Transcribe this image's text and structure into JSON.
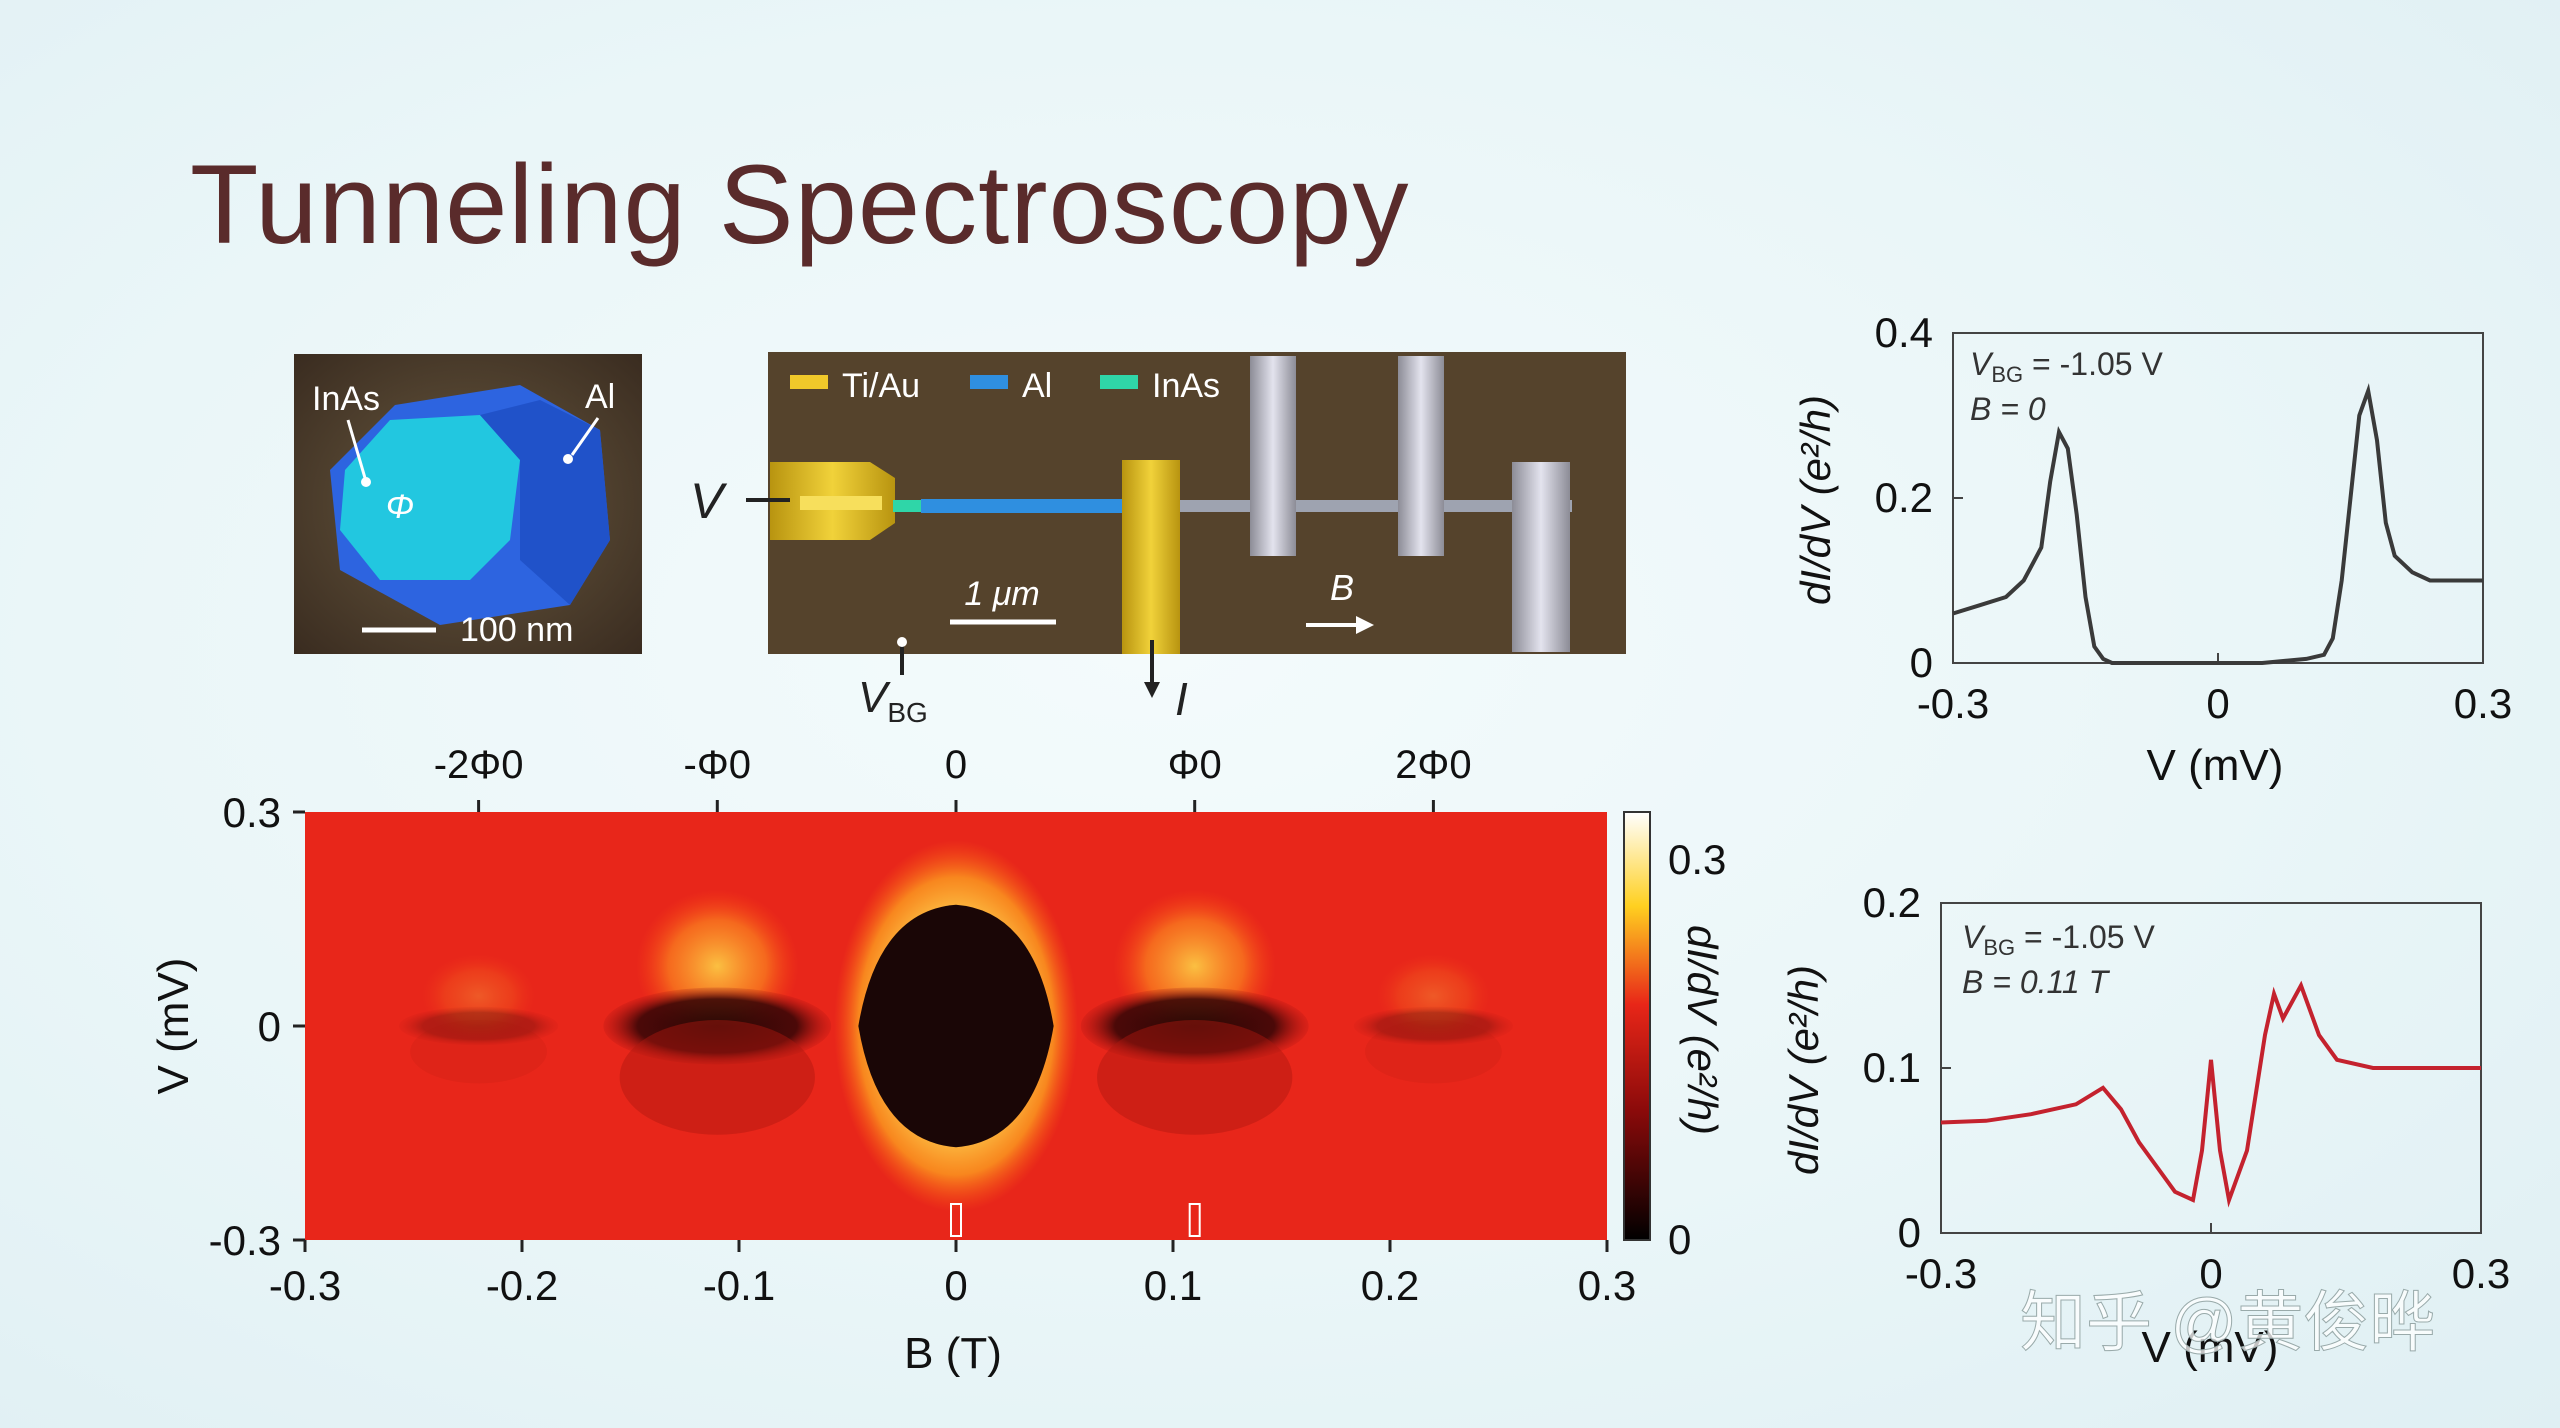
{
  "slide": {
    "title": "Tunneling Spectroscopy"
  },
  "cross_section": {
    "label_inas": "InAs",
    "label_al": "Al",
    "label_phi": "Φ",
    "scale_bar": "100 nm"
  },
  "device": {
    "legend": [
      {
        "label": "Ti/Au",
        "color": "#e6c52a"
      },
      {
        "label": "Al",
        "color": "#2f8fe0"
      },
      {
        "label": "InAs",
        "color": "#2fd6a8"
      }
    ],
    "label_v": "V",
    "label_vbg": "V",
    "label_vbg_sub": "BG",
    "label_i": "I",
    "scale_bar": "1 μm",
    "label_b": "B"
  },
  "colors": {
    "map_base": "#e8261a",
    "map_dark": "#1a0606",
    "map_bright": "#fff27a",
    "curve_top": "#3a3a3a",
    "curve_bottom": "#c4222e",
    "title": "#5a2b2b"
  },
  "chart_data": [
    {
      "type": "heatmap",
      "xlabel": "B (T)",
      "ylabel": "V (mV)",
      "xlim": [
        -0.3,
        0.3
      ],
      "ylim": [
        -0.3,
        0.3
      ],
      "xticks": [
        "-0.3",
        "-0.2",
        "-0.1",
        "0",
        "0.1",
        "0.2",
        "0.3"
      ],
      "yticks": [
        "-0.3",
        "0",
        "0.3"
      ],
      "top_axis_ticks": [
        "-2Φ0",
        "-Φ0",
        "0",
        "Φ0",
        "2Φ0"
      ],
      "top_axis_positions": [
        -0.22,
        -0.11,
        0,
        0.11,
        0.22
      ],
      "colorbar": {
        "label": "dI/dV (e²/h)",
        "ticks": [
          "0.3",
          "0"
        ],
        "range": [
          0,
          0.3
        ]
      },
      "markers_B": [
        0,
        0.11
      ],
      "lobes": [
        {
          "B_center": 0,
          "half_width_B": 0.045,
          "gap_mV": 0.17,
          "strength": 1.0
        },
        {
          "B_center": -0.11,
          "half_width_B": 0.05,
          "gap_mV": 0.06,
          "strength": 0.75
        },
        {
          "B_center": 0.11,
          "half_width_B": 0.05,
          "gap_mV": 0.06,
          "strength": 0.75
        },
        {
          "B_center": -0.22,
          "half_width_B": 0.035,
          "gap_mV": 0.03,
          "strength": 0.25
        },
        {
          "B_center": 0.22,
          "half_width_B": 0.035,
          "gap_mV": 0.03,
          "strength": 0.25
        }
      ]
    },
    {
      "type": "line",
      "xlabel": "V (mV)",
      "ylabel": "dI/dV (e²/h)",
      "xlim": [
        -0.3,
        0.3
      ],
      "ylim": [
        0,
        0.4
      ],
      "xticks": [
        "-0.3",
        "0",
        "0.3"
      ],
      "yticks": [
        "0",
        "0.2",
        "0.4"
      ],
      "annotation": [
        "V",
        "BG",
        " = -1.05 V",
        "B = 0"
      ],
      "series": [
        {
          "x": [
            -0.3,
            -0.27,
            -0.24,
            -0.22,
            -0.2,
            -0.19,
            -0.18,
            -0.17,
            -0.16,
            -0.15,
            -0.14,
            -0.13,
            -0.12,
            -0.1,
            -0.05,
            0,
            0.05,
            0.1,
            0.12,
            0.13,
            0.14,
            0.15,
            0.16,
            0.17,
            0.18,
            0.19,
            0.2,
            0.22,
            0.24,
            0.27,
            0.3
          ],
          "y": [
            0.06,
            0.07,
            0.08,
            0.1,
            0.14,
            0.22,
            0.28,
            0.26,
            0.18,
            0.08,
            0.02,
            0.005,
            0.0,
            0.0,
            0.0,
            0.0,
            0.0,
            0.005,
            0.01,
            0.03,
            0.1,
            0.2,
            0.3,
            0.33,
            0.27,
            0.17,
            0.13,
            0.11,
            0.1,
            0.1,
            0.1
          ]
        }
      ]
    },
    {
      "type": "line",
      "xlabel": "V (mV)",
      "ylabel": "dI/dV (e²/h)",
      "xlim": [
        -0.3,
        0.3
      ],
      "ylim": [
        0,
        0.2
      ],
      "xticks": [
        "-0.3",
        "0",
        "0.3"
      ],
      "yticks": [
        "0",
        "0.1",
        "0.2"
      ],
      "annotation": [
        "V",
        "BG",
        " = -1.05 V",
        "B = 0.11 T"
      ],
      "series": [
        {
          "x": [
            -0.3,
            -0.25,
            -0.2,
            -0.15,
            -0.12,
            -0.1,
            -0.08,
            -0.06,
            -0.04,
            -0.02,
            -0.01,
            0,
            0.01,
            0.02,
            0.04,
            0.06,
            0.07,
            0.08,
            0.09,
            0.1,
            0.12,
            0.14,
            0.18,
            0.22,
            0.26,
            0.3
          ],
          "y": [
            0.067,
            0.068,
            0.072,
            0.078,
            0.088,
            0.075,
            0.055,
            0.04,
            0.025,
            0.02,
            0.05,
            0.105,
            0.05,
            0.02,
            0.05,
            0.12,
            0.145,
            0.13,
            0.14,
            0.15,
            0.12,
            0.105,
            0.1,
            0.1,
            0.1,
            0.1
          ]
        }
      ]
    }
  ],
  "watermark": "知乎 @黄俊晔"
}
